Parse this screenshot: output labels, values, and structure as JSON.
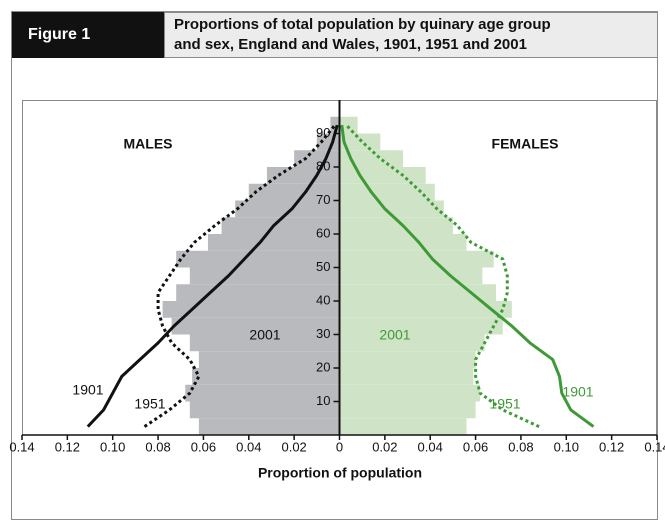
{
  "figure_label": "Figure 1",
  "chart_data": {
    "type": "pyramid",
    "title": [
      "Proportions of total population by quinary age group",
      "and sex, England and Wales, 1901, 1951 and 2001"
    ],
    "xlabel": "Proportion of population",
    "xlim": [
      -0.14,
      0.14
    ],
    "xticks": [
      {
        "value": -0.14,
        "label": "0.14"
      },
      {
        "value": -0.12,
        "label": "0.12"
      },
      {
        "value": -0.1,
        "label": "0.10"
      },
      {
        "value": -0.08,
        "label": "0.08"
      },
      {
        "value": -0.06,
        "label": "0.06"
      },
      {
        "value": -0.04,
        "label": "0.04"
      },
      {
        "value": -0.02,
        "label": "0.02"
      },
      0,
      0.02,
      0.04,
      0.06,
      0.08,
      {
        "value": 0.1,
        "label": "0.10"
      },
      0.12,
      0.14
    ],
    "ylim": [
      0,
      100
    ],
    "yticks": [
      10,
      20,
      30,
      40,
      50,
      60,
      70,
      80,
      90
    ],
    "bins": [
      0,
      5,
      10,
      15,
      20,
      25,
      30,
      35,
      40,
      45,
      50,
      55,
      60,
      65,
      70,
      75,
      80,
      85,
      90,
      95
    ],
    "males": {
      "label": "MALES",
      "series": [
        {
          "name": "2001",
          "style": "bars",
          "color": "#b9babe",
          "values": [
            -0.062,
            -0.066,
            -0.068,
            -0.065,
            -0.062,
            -0.066,
            -0.074,
            -0.078,
            -0.072,
            -0.066,
            -0.072,
            -0.058,
            -0.052,
            -0.046,
            -0.04,
            -0.032,
            -0.02,
            -0.01,
            -0.004
          ]
        },
        {
          "name": "1901",
          "style": "solid",
          "color": "#111111",
          "values": [
            -0.111,
            -0.104,
            -0.1,
            -0.096,
            -0.088,
            -0.08,
            -0.073,
            -0.065,
            -0.057,
            -0.049,
            -0.042,
            -0.035,
            -0.029,
            -0.021,
            -0.015,
            -0.01,
            -0.006,
            -0.003,
            -0.001
          ]
        },
        {
          "name": "1951",
          "style": "dotted",
          "color": "#111111",
          "values": [
            -0.086,
            -0.075,
            -0.066,
            -0.062,
            -0.066,
            -0.074,
            -0.078,
            -0.08,
            -0.08,
            -0.075,
            -0.07,
            -0.064,
            -0.055,
            -0.045,
            -0.037,
            -0.027,
            -0.015,
            -0.008,
            -0.002
          ]
        }
      ]
    },
    "females": {
      "label": "FEMALES",
      "series": [
        {
          "name": "2001",
          "style": "bars",
          "color": "#cfe4c6",
          "values": [
            0.056,
            0.06,
            0.062,
            0.059,
            0.06,
            0.064,
            0.072,
            0.076,
            0.069,
            0.063,
            0.068,
            0.056,
            0.05,
            0.046,
            0.042,
            0.038,
            0.028,
            0.018,
            0.008
          ]
        },
        {
          "name": "1901",
          "style": "solid",
          "color": "#3e9a37",
          "values": [
            0.112,
            0.102,
            0.098,
            0.097,
            0.094,
            0.084,
            0.076,
            0.067,
            0.058,
            0.049,
            0.041,
            0.035,
            0.028,
            0.02,
            0.014,
            0.009,
            0.005,
            0.002,
            0.001
          ]
        },
        {
          "name": "1951",
          "style": "dotted",
          "color": "#3e9a37",
          "values": [
            0.088,
            0.072,
            0.062,
            0.06,
            0.06,
            0.064,
            0.068,
            0.072,
            0.074,
            0.074,
            0.072,
            0.058,
            0.052,
            0.043,
            0.036,
            0.028,
            0.018,
            0.01,
            0.003
          ]
        }
      ]
    }
  }
}
